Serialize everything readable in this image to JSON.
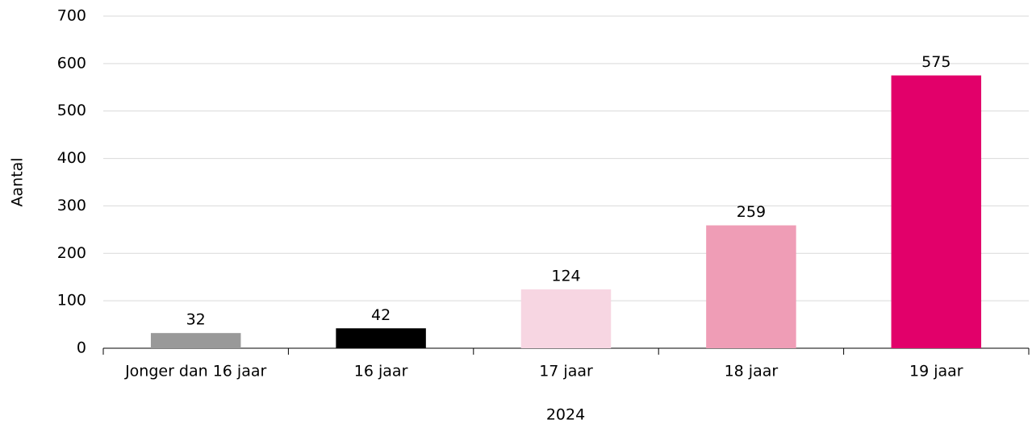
{
  "chart_data": {
    "type": "bar",
    "categories": [
      "Jonger dan 16 jaar",
      "16 jaar",
      "17 jaar",
      "18 jaar",
      "19 jaar"
    ],
    "values": [
      32,
      42,
      124,
      259,
      575
    ],
    "colors": [
      "#999999",
      "#000000",
      "#f7d6e2",
      "#ef9db6",
      "#e2006a"
    ],
    "xlabel": "2024",
    "ylabel": "Aantal",
    "ylim": [
      0,
      700
    ],
    "yticks": [
      0,
      100,
      200,
      300,
      400,
      500,
      600,
      700
    ],
    "grid": true
  }
}
